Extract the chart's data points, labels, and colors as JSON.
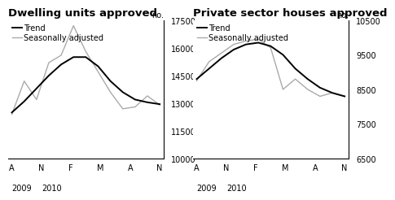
{
  "title1": "Dwelling units approved",
  "title2": "Private sector houses approved",
  "ylabel_text": "no.",
  "xtick_labels": [
    "A",
    "N",
    "F",
    "M",
    "A",
    "N"
  ],
  "chart1": {
    "ylim": [
      10000,
      17500
    ],
    "yticks": [
      10000,
      11500,
      13000,
      14500,
      16000,
      17500
    ],
    "trend": [
      12500,
      13100,
      13800,
      14500,
      15100,
      15500,
      15500,
      15000,
      14200,
      13600,
      13200,
      13050,
      12950
    ],
    "seasonal": [
      12400,
      14200,
      13200,
      15200,
      15600,
      17200,
      15800,
      14700,
      13600,
      12700,
      12800,
      13400,
      12900
    ]
  },
  "chart2": {
    "ylim": [
      6500,
      10500
    ],
    "yticks": [
      6500,
      7500,
      8500,
      9500,
      10500
    ],
    "trend": [
      8800,
      9100,
      9400,
      9650,
      9800,
      9850,
      9750,
      9500,
      9100,
      8800,
      8550,
      8400,
      8300
    ],
    "seasonal": [
      8750,
      9300,
      9550,
      9800,
      9900,
      9950,
      9700,
      8500,
      8800,
      8500,
      8300,
      8400,
      8300
    ]
  },
  "trend_color": "#000000",
  "seasonal_color": "#aaaaaa",
  "trend_lw": 1.4,
  "seasonal_lw": 1.0,
  "background_color": "#ffffff",
  "title_fontsize": 9.5,
  "legend_fontsize": 7,
  "tick_fontsize": 7,
  "year_fontsize": 7
}
